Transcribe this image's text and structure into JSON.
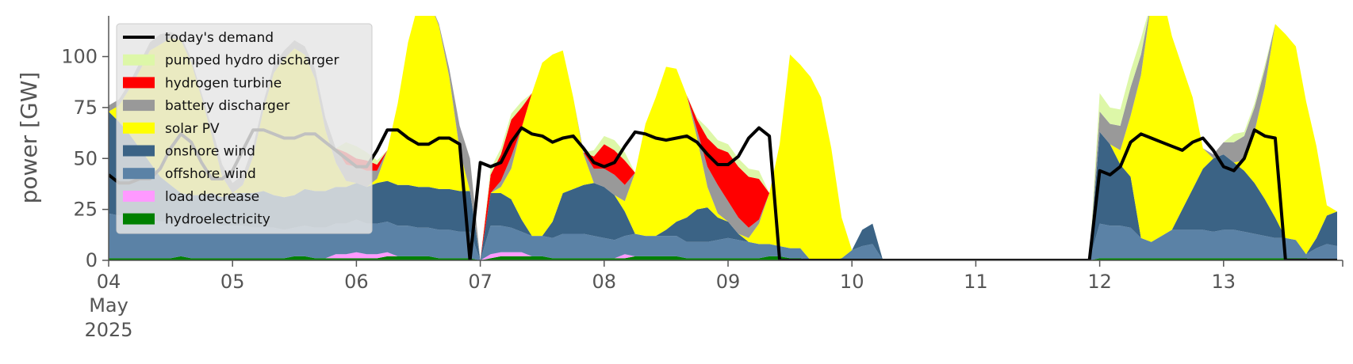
{
  "chart_data": {
    "type": "area",
    "title": "",
    "xlabel": "",
    "ylabel": "power [GW]",
    "ylim": [
      0,
      120
    ],
    "xlim": [
      "2025-05-04 00:00",
      "2025-05-13 23:00"
    ],
    "stacked": true,
    "grid": false,
    "legend_placement": "top-left",
    "x": [
      "2025-05-04 00:00",
      "2025-05-04 02:00",
      "2025-05-04 04:00",
      "2025-05-04 06:00",
      "2025-05-04 08:00",
      "2025-05-04 10:00",
      "2025-05-04 12:00",
      "2025-05-04 14:00",
      "2025-05-04 16:00",
      "2025-05-04 18:00",
      "2025-05-04 20:00",
      "2025-05-04 22:00",
      "2025-05-05 00:00",
      "2025-05-05 02:00",
      "2025-05-05 04:00",
      "2025-05-05 06:00",
      "2025-05-05 08:00",
      "2025-05-05 10:00",
      "2025-05-05 12:00",
      "2025-05-05 14:00",
      "2025-05-05 16:00",
      "2025-05-05 18:00",
      "2025-05-05 20:00",
      "2025-05-05 22:00",
      "2025-05-06 00:00",
      "2025-05-06 02:00",
      "2025-05-06 04:00",
      "2025-05-06 06:00",
      "2025-05-06 08:00",
      "2025-05-06 10:00",
      "2025-05-06 12:00",
      "2025-05-06 14:00",
      "2025-05-06 16:00",
      "2025-05-06 18:00",
      "2025-05-06 20:00",
      "2025-05-06 22:00",
      "2025-05-07 00:00",
      "2025-05-07 02:00",
      "2025-05-07 04:00",
      "2025-05-07 06:00",
      "2025-05-07 08:00",
      "2025-05-07 10:00",
      "2025-05-07 12:00",
      "2025-05-07 14:00",
      "2025-05-07 16:00",
      "2025-05-07 18:00",
      "2025-05-07 20:00",
      "2025-05-07 22:00",
      "2025-05-08 00:00",
      "2025-05-08 02:00",
      "2025-05-08 04:00",
      "2025-05-08 06:00",
      "2025-05-08 08:00",
      "2025-05-08 10:00",
      "2025-05-08 12:00",
      "2025-05-08 14:00",
      "2025-05-08 16:00",
      "2025-05-08 18:00",
      "2025-05-08 20:00",
      "2025-05-08 22:00",
      "2025-05-09 00:00",
      "2025-05-09 02:00",
      "2025-05-09 04:00",
      "2025-05-09 06:00",
      "2025-05-09 08:00",
      "2025-05-09 10:00",
      "2025-05-09 12:00",
      "2025-05-09 14:00",
      "2025-05-09 16:00",
      "2025-05-09 18:00",
      "2025-05-09 20:00",
      "2025-05-09 22:00",
      "2025-05-10 00:00",
      "2025-05-10 02:00",
      "2025-05-10 04:00",
      "2025-05-10 06:00",
      "2025-05-10 08:00",
      "2025-05-10 10:00",
      "2025-05-10 12:00",
      "2025-05-10 14:00",
      "2025-05-10 16:00",
      "2025-05-10 18:00",
      "2025-05-10 20:00",
      "2025-05-10 22:00",
      "2025-05-11 00:00",
      "2025-05-11 02:00",
      "2025-05-11 04:00",
      "2025-05-11 06:00",
      "2025-05-11 08:00",
      "2025-05-11 10:00",
      "2025-05-11 12:00",
      "2025-05-11 14:00",
      "2025-05-11 16:00",
      "2025-05-11 18:00",
      "2025-05-11 20:00",
      "2025-05-11 22:00",
      "2025-05-12 00:00",
      "2025-05-12 02:00",
      "2025-05-12 04:00",
      "2025-05-12 06:00",
      "2025-05-12 08:00",
      "2025-05-12 10:00",
      "2025-05-12 12:00",
      "2025-05-12 14:00",
      "2025-05-12 16:00",
      "2025-05-12 18:00",
      "2025-05-12 20:00",
      "2025-05-12 22:00",
      "2025-05-13 00:00",
      "2025-05-13 02:00",
      "2025-05-13 04:00",
      "2025-05-13 06:00",
      "2025-05-13 08:00",
      "2025-05-13 10:00",
      "2025-05-13 12:00",
      "2025-05-13 14:00",
      "2025-05-13 16:00",
      "2025-05-13 18:00",
      "2025-05-13 20:00",
      "2025-05-13 22:00"
    ],
    "series": [
      {
        "name": "hydroelectricity",
        "color": "#008000",
        "values": [
          1,
          1,
          1,
          1,
          1,
          1,
          1,
          2,
          1,
          1,
          1,
          1,
          1,
          1,
          1,
          1,
          1,
          1,
          2,
          2,
          1,
          1,
          1,
          1,
          1,
          1,
          1,
          2,
          2,
          2,
          2,
          2,
          1,
          1,
          1,
          1,
          0,
          1,
          2,
          2,
          2,
          2,
          2,
          1,
          1,
          1,
          1,
          1,
          1,
          1,
          1,
          2,
          2,
          2,
          2,
          2,
          1,
          1,
          1,
          1,
          1,
          1,
          1,
          1,
          2,
          2,
          1,
          1,
          0,
          0,
          0,
          0,
          0,
          0,
          0,
          0,
          0,
          0,
          0,
          0,
          0,
          0,
          0,
          0,
          0,
          0,
          0,
          0,
          0,
          0,
          0,
          0,
          0,
          0,
          0,
          0,
          1,
          1,
          1,
          1,
          1,
          1,
          1,
          1,
          1,
          1,
          1,
          1,
          1,
          1,
          1,
          1,
          1,
          1,
          1,
          1,
          1,
          0,
          0,
          0
        ]
      },
      {
        "name": "load decrease",
        "color": "#ff99ff",
        "values": [
          0,
          0,
          0,
          0,
          0,
          0,
          0,
          0,
          0,
          0,
          0,
          0,
          0,
          0,
          0,
          0,
          0,
          0,
          0,
          0,
          0,
          0,
          2,
          2,
          3,
          2,
          2,
          2,
          0,
          0,
          0,
          0,
          0,
          0,
          0,
          0,
          0,
          2,
          2,
          2,
          2,
          0,
          0,
          0,
          0,
          0,
          0,
          0,
          0,
          0,
          2,
          0,
          0,
          0,
          0,
          0,
          0,
          0,
          0,
          0,
          0,
          0,
          0,
          0,
          0,
          0,
          0,
          0,
          0,
          0,
          0,
          0,
          0,
          0,
          0,
          0,
          0,
          0,
          0,
          0,
          0,
          0,
          0,
          0,
          0,
          0,
          0,
          0,
          0,
          0,
          0,
          0,
          0,
          0,
          0,
          0,
          0,
          0,
          0,
          0,
          0,
          0,
          0,
          0,
          0,
          0,
          0,
          0,
          0,
          0,
          0,
          0,
          0,
          0,
          0,
          0,
          0,
          0,
          0,
          0
        ]
      },
      {
        "name": "offshore wind",
        "color": "#5b82a6",
        "values": [
          22,
          21,
          21,
          20,
          19,
          18,
          18,
          17,
          17,
          17,
          17,
          16,
          16,
          16,
          15,
          15,
          15,
          14,
          14,
          15,
          15,
          15,
          15,
          15,
          16,
          15,
          15,
          15,
          15,
          15,
          14,
          14,
          14,
          14,
          13,
          13,
          0,
          14,
          13,
          12,
          10,
          10,
          10,
          10,
          12,
          12,
          12,
          11,
          10,
          9,
          9,
          11,
          10,
          10,
          10,
          10,
          8,
          8,
          8,
          9,
          10,
          9,
          8,
          7,
          6,
          5,
          5,
          5,
          0,
          0,
          0,
          1,
          5,
          7,
          8,
          0,
          0,
          0,
          0,
          0,
          0,
          0,
          0,
          0,
          0,
          0,
          0,
          0,
          0,
          0,
          0,
          0,
          0,
          0,
          0,
          0,
          17,
          16,
          16,
          15,
          10,
          8,
          11,
          14,
          14,
          14,
          14,
          13,
          14,
          14,
          13,
          12,
          11,
          10,
          10,
          9,
          2,
          6,
          8,
          7
        ]
      },
      {
        "name": "onshore wind",
        "color": "#3b6385",
        "values": [
          50,
          46,
          40,
          34,
          28,
          22,
          18,
          14,
          14,
          14,
          15,
          14,
          16,
          16,
          17,
          18,
          16,
          16,
          16,
          18,
          18,
          18,
          18,
          18,
          18,
          18,
          20,
          20,
          20,
          20,
          20,
          20,
          20,
          20,
          20,
          20,
          0,
          16,
          16,
          14,
          6,
          0,
          0,
          8,
          20,
          22,
          24,
          26,
          25,
          22,
          12,
          0,
          0,
          0,
          3,
          7,
          12,
          16,
          17,
          11,
          8,
          3,
          0,
          0,
          0,
          0,
          0,
          0,
          0,
          0,
          0,
          0,
          0,
          8,
          10,
          0,
          0,
          0,
          0,
          0,
          0,
          0,
          0,
          0,
          0,
          0,
          0,
          0,
          0,
          0,
          0,
          0,
          0,
          0,
          0,
          0,
          45,
          40,
          30,
          25,
          0,
          0,
          0,
          0,
          10,
          20,
          30,
          36,
          37,
          33,
          30,
          25,
          18,
          10,
          0,
          0,
          0,
          5,
          14,
          17
        ]
      },
      {
        "name": "solar PV",
        "color": "#ffff00",
        "values": [
          0,
          8,
          22,
          38,
          55,
          65,
          72,
          75,
          65,
          48,
          28,
          10,
          0,
          4,
          18,
          40,
          60,
          68,
          72,
          66,
          55,
          30,
          12,
          3,
          0,
          0,
          2,
          15,
          40,
          70,
          90,
          92,
          80,
          55,
          20,
          0,
          0,
          0,
          3,
          15,
          45,
          70,
          85,
          82,
          70,
          45,
          15,
          0,
          0,
          0,
          5,
          30,
          55,
          68,
          80,
          75,
          60,
          35,
          10,
          2,
          0,
          0,
          2,
          10,
          25,
          50,
          95,
          90,
          90,
          80,
          55,
          20,
          0,
          0,
          0,
          0,
          0,
          0,
          0,
          0,
          0,
          0,
          0,
          0,
          0,
          0,
          0,
          0,
          0,
          0,
          0,
          0,
          0,
          0,
          0,
          0,
          0,
          0,
          7,
          30,
          80,
          118,
          120,
          95,
          70,
          45,
          10,
          0,
          0,
          0,
          5,
          25,
          55,
          95,
          100,
          95,
          75,
          45,
          5,
          0
        ]
      },
      {
        "name": "battery discharger",
        "color": "#999999",
        "values": [
          3,
          3,
          3,
          4,
          4,
          5,
          3,
          2,
          2,
          2,
          4,
          6,
          5,
          5,
          5,
          4,
          4,
          4,
          4,
          4,
          5,
          6,
          7,
          8,
          8,
          8,
          4,
          0,
          0,
          0,
          0,
          0,
          1,
          4,
          12,
          16,
          0,
          0,
          3,
          6,
          0,
          0,
          0,
          0,
          0,
          0,
          1,
          7,
          9,
          10,
          8,
          0,
          0,
          0,
          0,
          0,
          0,
          4,
          10,
          14,
          10,
          8,
          5,
          2,
          0,
          0,
          0,
          0,
          0,
          0,
          0,
          0,
          0,
          0,
          0,
          0,
          0,
          0,
          0,
          0,
          0,
          0,
          0,
          0,
          0,
          0,
          0,
          0,
          0,
          0,
          0,
          0,
          0,
          0,
          0,
          0,
          10,
          10,
          12,
          14,
          10,
          0,
          0,
          0,
          0,
          0,
          0,
          2,
          6,
          10,
          12,
          12,
          9,
          0,
          0,
          0,
          0,
          0,
          0,
          0
        ]
      },
      {
        "name": "hydrogen turbine",
        "color": "#ff0000",
        "values": [
          0,
          0,
          0,
          0,
          0,
          0,
          0,
          0,
          0,
          0,
          0,
          0,
          0,
          0,
          0,
          0,
          0,
          0,
          0,
          0,
          0,
          0,
          0,
          6,
          4,
          5,
          3,
          0,
          0,
          0,
          0,
          0,
          0,
          0,
          0,
          0,
          0,
          9,
          13,
          18,
          10,
          0,
          0,
          0,
          0,
          0,
          0,
          6,
          12,
          12,
          12,
          0,
          0,
          0,
          0,
          0,
          0,
          5,
          14,
          18,
          24,
          25,
          25,
          20,
          0,
          0,
          0,
          0,
          0,
          0,
          0,
          0,
          0,
          0,
          0,
          0,
          0,
          0,
          0,
          0,
          0,
          0,
          0,
          0,
          0,
          0,
          0,
          0,
          0,
          0,
          0,
          0,
          0,
          0,
          0,
          0,
          0,
          0,
          0,
          0,
          0,
          0,
          0,
          0,
          0,
          0,
          0,
          0,
          0,
          0,
          0,
          0,
          0,
          0,
          0,
          0,
          0,
          0,
          0,
          0
        ]
      },
      {
        "name": "pumped hydro discharger",
        "color": "#ddf7a8",
        "values": [
          0,
          0,
          0,
          0,
          0,
          0,
          0,
          0,
          0,
          0,
          0,
          0,
          0,
          0,
          0,
          0,
          0,
          0,
          0,
          0,
          0,
          0,
          0,
          5,
          6,
          4,
          2,
          0,
          0,
          0,
          0,
          0,
          0,
          0,
          0,
          0,
          0,
          3,
          3,
          3,
          3,
          0,
          0,
          0,
          0,
          0,
          0,
          3,
          4,
          5,
          4,
          0,
          0,
          0,
          0,
          0,
          0,
          1,
          5,
          4,
          4,
          4,
          4,
          4,
          0,
          0,
          0,
          0,
          0,
          0,
          0,
          0,
          0,
          0,
          0,
          0,
          0,
          0,
          0,
          0,
          0,
          0,
          0,
          0,
          0,
          0,
          0,
          0,
          0,
          0,
          0,
          0,
          0,
          0,
          0,
          0,
          9,
          8,
          8,
          8,
          8,
          0,
          0,
          0,
          0,
          0,
          0,
          0,
          0,
          4,
          2,
          2,
          2,
          0,
          0,
          0,
          0,
          0,
          0,
          0
        ]
      },
      {
        "name": "today's demand",
        "color": "#000000",
        "type": "line",
        "values": [
          42,
          38,
          38,
          40,
          40,
          45,
          55,
          62,
          58,
          48,
          40,
          40,
          44,
          54,
          64,
          64,
          62,
          60,
          60,
          62,
          62,
          58,
          54,
          50,
          46,
          46,
          54,
          64,
          64,
          60,
          57,
          57,
          60,
          60,
          57,
          0,
          48,
          46,
          48,
          58,
          65,
          62,
          61,
          58,
          60,
          61,
          55,
          48,
          46,
          48,
          56,
          63,
          62,
          60,
          59,
          60,
          61,
          58,
          52,
          47,
          47,
          51,
          60,
          65,
          61,
          0,
          0,
          0,
          0,
          0,
          0,
          0,
          0,
          0,
          0,
          0,
          0,
          0,
          0,
          0,
          0,
          0,
          0,
          0,
          0,
          0,
          0,
          0,
          0,
          0,
          0,
          0,
          0,
          0,
          0,
          0,
          44,
          42,
          46,
          58,
          62,
          60,
          58,
          56,
          54,
          58,
          60,
          54,
          46,
          44,
          50,
          64,
          61,
          60,
          0,
          0,
          0,
          0,
          0,
          0
        ]
      }
    ],
    "legend": [
      "today's demand",
      "pumped hydro discharger",
      "hydrogen turbine",
      "battery discharger",
      "solar PV",
      "onshore wind",
      "offshore wind",
      "load decrease",
      "hydroelectricity"
    ],
    "yticks": [
      0,
      25,
      50,
      75,
      100
    ],
    "xticks": [
      {
        "x": "2025-05-04 00:00",
        "label": "04",
        "sub1": "May",
        "sub2": "2025"
      },
      {
        "x": "2025-05-05 00:00",
        "label": "05"
      },
      {
        "x": "2025-05-06 00:00",
        "label": "06"
      },
      {
        "x": "2025-05-07 00:00",
        "label": "07"
      },
      {
        "x": "2025-05-08 00:00",
        "label": "08"
      },
      {
        "x": "2025-05-09 00:00",
        "label": "09"
      },
      {
        "x": "2025-05-10 00:00",
        "label": "10"
      },
      {
        "x": "2025-05-11 00:00",
        "label": "11"
      },
      {
        "x": "2025-05-12 00:00",
        "label": "12"
      },
      {
        "x": "2025-05-13 00:00",
        "label": "13"
      }
    ]
  }
}
